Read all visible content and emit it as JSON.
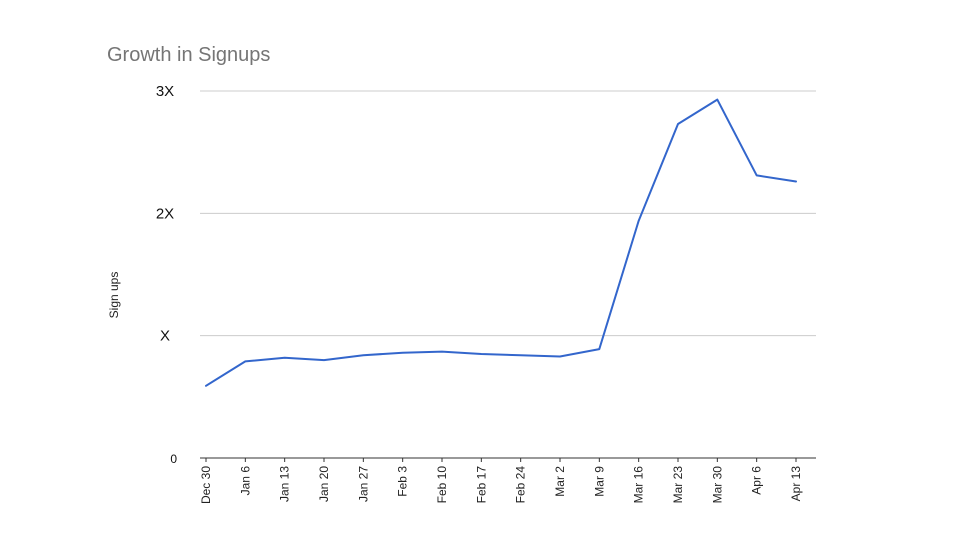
{
  "chart_data": {
    "type": "line",
    "title": "Growth in Signups",
    "xlabel": "",
    "ylabel": "Sign ups",
    "categories": [
      "Dec 30",
      "Jan 6",
      "Jan 13",
      "Jan 20",
      "Jan 27",
      "Feb 3",
      "Feb 10",
      "Feb 17",
      "Feb 24",
      "Mar 2",
      "Mar 9",
      "Mar 16",
      "Mar 23",
      "Mar 30",
      "Apr 6",
      "Apr 13"
    ],
    "series": [
      {
        "values": [
          0.59,
          0.79,
          0.82,
          0.8,
          0.84,
          0.86,
          0.87,
          0.85,
          0.84,
          0.83,
          0.89,
          1.94,
          2.73,
          2.93,
          2.31,
          2.26
        ],
        "color": "#3366cc"
      }
    ],
    "yticks": [
      {
        "value": 0,
        "label": "0"
      },
      {
        "value": 1,
        "label": "X"
      },
      {
        "value": 2,
        "label": "2X"
      },
      {
        "value": 3,
        "label": "3X"
      }
    ],
    "ylim": [
      0,
      3
    ],
    "grid": true,
    "legend": "none"
  }
}
